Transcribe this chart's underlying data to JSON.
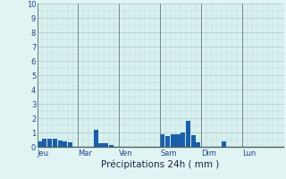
{
  "xlabel": "Précipitations 24h ( mm )",
  "ylim": [
    0,
    10
  ],
  "yticks": [
    0,
    1,
    2,
    3,
    4,
    5,
    6,
    7,
    8,
    9,
    10
  ],
  "background_color": "#e0f4f4",
  "plot_bg_color": "#d8f0f0",
  "bar_color": "#1a5faa",
  "grid_color_major": "#a8c8c8",
  "grid_color_minor": "#b8d4d4",
  "sep_color": "#607878",
  "day_labels": [
    "Jeu",
    "Mar",
    "Ven",
    "Sam",
    "Dim",
    "Lun"
  ],
  "n_days": 6,
  "bars_per_day": 8,
  "bar_values": [
    [
      0.35,
      0.55,
      0.55,
      0.55,
      0.45,
      0.35,
      0.3,
      0.0
    ],
    [
      0.0,
      0.0,
      0.0,
      1.2,
      0.25,
      0.25,
      0.1,
      0.0
    ],
    [
      0.0,
      0.0,
      0.0,
      0.0,
      0.0,
      0.0,
      0.0,
      0.0
    ],
    [
      0.9,
      0.75,
      0.85,
      0.85,
      1.0,
      1.8,
      0.8,
      0.3
    ],
    [
      0.0,
      0.0,
      0.0,
      0.0,
      0.35,
      0.0,
      0.0,
      0.0
    ],
    [
      0.0,
      0.0,
      0.0,
      0.0,
      0.0,
      0.0,
      0.0,
      0.0
    ]
  ]
}
